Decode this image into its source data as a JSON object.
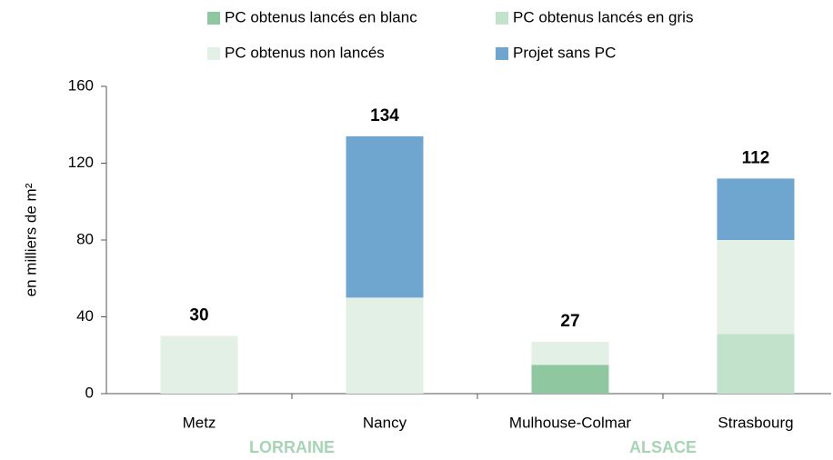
{
  "chart_data": {
    "type": "bar",
    "stacked": true,
    "y_label": "en milliers de m²",
    "categories": [
      "Metz",
      "Nancy",
      "Mulhouse-Colmar",
      "Strasbourg"
    ],
    "groups": [
      "LORRAINE",
      "ALSACE"
    ],
    "series": [
      {
        "name": "PC obtenus lancés en blanc",
        "color": "#8fc8a0",
        "values": [
          0,
          0,
          15,
          0
        ]
      },
      {
        "name": "PC obtenus lancés en gris",
        "color": "#c2e2cc",
        "values": [
          0,
          0,
          0,
          31
        ]
      },
      {
        "name": "PC obtenus non lancés",
        "color": "#e2f0e5",
        "values": [
          30,
          50,
          12,
          49
        ]
      },
      {
        "name": "Projet sans PC",
        "color": "#6fa6d0",
        "values": [
          0,
          84,
          0,
          32
        ]
      }
    ],
    "totals": [
      30,
      134,
      27,
      112
    ],
    "ylim": [
      0,
      160
    ],
    "yticks": [
      0,
      40,
      80,
      120,
      160
    ]
  }
}
